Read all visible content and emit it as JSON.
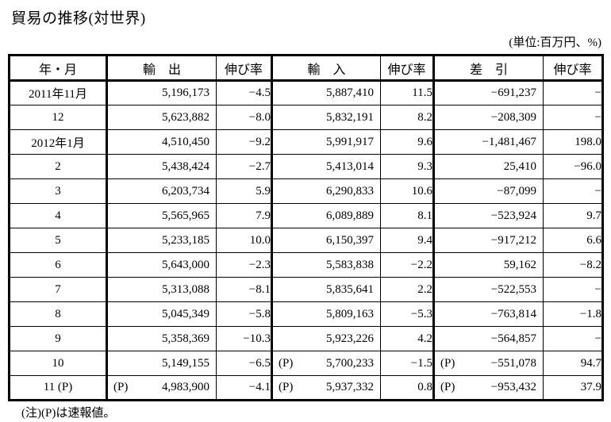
{
  "page": {
    "title": "貿易の推移(対世界)",
    "unit_note": "(単位:百万円、%)",
    "footnote": "(注)(P)は速報値。"
  },
  "table": {
    "headers": [
      "年・月",
      "輸　出",
      "伸び率",
      "輸　入",
      "伸び率",
      "差　引",
      "伸び率"
    ],
    "rows": [
      {
        "period": "2011年11月",
        "export": "5,196,173",
        "export_growth": "−4.5",
        "import": "5,887,410",
        "import_growth": "11.5",
        "balance": "−691,237",
        "balance_growth": "−"
      },
      {
        "period": "12",
        "export": "5,623,882",
        "export_growth": "−8.0",
        "import": "5,832,191",
        "import_growth": "8.2",
        "balance": "−208,309",
        "balance_growth": "−"
      },
      {
        "period": "2012年1月",
        "export": "4,510,450",
        "export_growth": "−9.2",
        "import": "5,991,917",
        "import_growth": "9.6",
        "balance": "−1,481,467",
        "balance_growth": "198.0"
      },
      {
        "period": "2",
        "export": "5,438,424",
        "export_growth": "−2.7",
        "import": "5,413,014",
        "import_growth": "9.3",
        "balance": "25,410",
        "balance_growth": "−96.0"
      },
      {
        "period": "3",
        "export": "6,203,734",
        "export_growth": "5.9",
        "import": "6,290,833",
        "import_growth": "10.6",
        "balance": "−87,099",
        "balance_growth": "−"
      },
      {
        "period": "4",
        "export": "5,565,965",
        "export_growth": "7.9",
        "import": "6,089,889",
        "import_growth": "8.1",
        "balance": "−523,924",
        "balance_growth": "9.7"
      },
      {
        "period": "5",
        "export": "5,233,185",
        "export_growth": "10.0",
        "import": "6,150,397",
        "import_growth": "9.4",
        "balance": "−917,212",
        "balance_growth": "6.6"
      },
      {
        "period": "6",
        "export": "5,643,000",
        "export_growth": "−2.3",
        "import": "5,583,838",
        "import_growth": "−2.2",
        "balance": "59,162",
        "balance_growth": "−8.2"
      },
      {
        "period": "7",
        "export": "5,313,088",
        "export_growth": "−8.1",
        "import": "5,835,641",
        "import_growth": "2.2",
        "balance": "−522,553",
        "balance_growth": "−"
      },
      {
        "period": "8",
        "export": "5,045,349",
        "export_growth": "−5.8",
        "import": "5,809,163",
        "import_growth": "−5.3",
        "balance": "−763,814",
        "balance_growth": "−1.8"
      },
      {
        "period": "9",
        "export": "5,358,369",
        "export_growth": "−10.3",
        "import": "5,923,226",
        "import_growth": "4.2",
        "balance": "−564,857",
        "balance_growth": "−"
      },
      {
        "period": "10",
        "export": "5,149,155",
        "export_growth": "−6.5",
        "import_p": "(P)",
        "import": "5,700,233",
        "import_growth": "−1.5",
        "balance_p": "(P)",
        "balance": "−551,078",
        "balance_growth": "94.7"
      },
      {
        "period": "11 (P)",
        "export_p": "(P)",
        "export": "4,983,900",
        "export_growth": "−4.1",
        "import_p": "(P)",
        "import": "5,937,332",
        "import_growth": "0.8",
        "balance_p": "(P)",
        "balance": "−953,432",
        "balance_growth": "37.9"
      }
    ]
  }
}
